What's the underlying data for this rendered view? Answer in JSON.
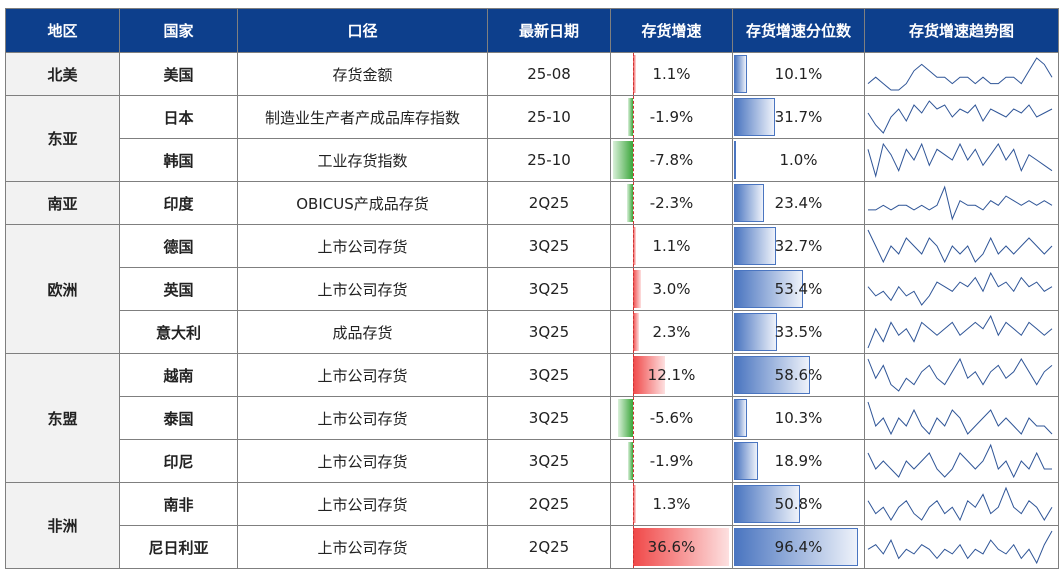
{
  "header": [
    "地区",
    "国家",
    "口径",
    "最新日期",
    "存货增速",
    "存货增速分位数",
    "存货增速趋势图"
  ],
  "regions": [
    {
      "name": "北美",
      "rows": [
        {
          "country": "美国",
          "metric": "存货金额",
          "date": "25-08",
          "growth": "1.1%",
          "percentile": "10.1%",
          "trend": [
            5,
            6,
            5,
            4,
            4,
            5,
            7,
            8,
            7,
            6,
            6,
            5,
            6,
            6,
            5,
            6,
            5,
            5,
            6,
            6,
            5,
            7,
            9,
            8,
            6
          ]
        }
      ]
    },
    {
      "name": "东亚",
      "rows": [
        {
          "country": "日本",
          "metric": "制造业生产者产成品库存指数",
          "date": "25-10",
          "growth": "-1.9%",
          "percentile": "31.7%",
          "trend": [
            6,
            3,
            1,
            5,
            7,
            4,
            8,
            6,
            9,
            7,
            8,
            5,
            7,
            6,
            8,
            4,
            7,
            6,
            5,
            7,
            6,
            8,
            5,
            6,
            7
          ]
        },
        {
          "country": "韩国",
          "metric": "工业存货指数",
          "date": "25-10",
          "growth": "-7.8%",
          "percentile": "1.0%",
          "trend": [
            7,
            2,
            8,
            6,
            3,
            7,
            5,
            8,
            4,
            7,
            6,
            5,
            8,
            5,
            7,
            4,
            6,
            8,
            5,
            7,
            3,
            6,
            5,
            4,
            3
          ]
        }
      ]
    },
    {
      "name": "南亚",
      "rows": [
        {
          "country": "印度",
          "metric": "OBICUS产成品存货",
          "date": "2Q25",
          "growth": "-2.3%",
          "percentile": "23.4%",
          "trend": [
            4,
            4,
            5,
            4,
            5,
            5,
            4,
            5,
            4,
            5,
            9,
            2,
            6,
            5,
            5,
            4,
            6,
            5,
            7,
            6,
            5,
            6,
            5,
            6,
            5
          ]
        }
      ]
    },
    {
      "name": "欧洲",
      "rows": [
        {
          "country": "德国",
          "metric": "上市公司存货",
          "date": "3Q25",
          "growth": "1.1%",
          "percentile": "32.7%",
          "trend": [
            8,
            6,
            4,
            6,
            5,
            7,
            6,
            5,
            7,
            6,
            4,
            6,
            5,
            6,
            4,
            5,
            7,
            5,
            6,
            5,
            6,
            7,
            6,
            5,
            6
          ]
        },
        {
          "country": "英国",
          "metric": "上市公司存货",
          "date": "3Q25",
          "growth": "3.0%",
          "percentile": "53.4%",
          "trend": [
            6,
            4,
            5,
            3,
            6,
            4,
            5,
            2,
            4,
            7,
            6,
            5,
            7,
            6,
            8,
            5,
            9,
            6,
            7,
            5,
            8,
            6,
            7,
            5,
            6
          ]
        },
        {
          "country": "意大利",
          "metric": "成品存货",
          "date": "3Q25",
          "growth": "2.3%",
          "percentile": "33.5%",
          "trend": [
            3,
            6,
            4,
            7,
            5,
            6,
            4,
            7,
            6,
            5,
            6,
            7,
            5,
            6,
            7,
            6,
            8,
            5,
            7,
            6,
            5,
            7,
            6,
            5,
            6
          ]
        }
      ]
    },
    {
      "name": "东盟",
      "rows": [
        {
          "country": "越南",
          "metric": "上市公司存货",
          "date": "3Q25",
          "growth": "12.1%",
          "percentile": "58.6%",
          "trend": [
            8,
            5,
            7,
            4,
            3,
            5,
            4,
            6,
            7,
            5,
            4,
            6,
            8,
            5,
            6,
            4,
            6,
            7,
            5,
            6,
            8,
            6,
            4,
            6,
            7
          ]
        },
        {
          "country": "泰国",
          "metric": "上市公司存货",
          "date": "3Q25",
          "growth": "-5.6%",
          "percentile": "10.3%",
          "trend": [
            8,
            5,
            6,
            4,
            6,
            5,
            7,
            5,
            4,
            6,
            5,
            7,
            6,
            4,
            5,
            6,
            7,
            5,
            6,
            5,
            4,
            6,
            5,
            5,
            4
          ]
        },
        {
          "country": "印尼",
          "metric": "上市公司存货",
          "date": "3Q25",
          "growth": "-1.9%",
          "percentile": "18.9%",
          "trend": [
            7,
            5,
            6,
            5,
            4,
            6,
            5,
            6,
            7,
            5,
            4,
            5,
            7,
            6,
            5,
            6,
            8,
            5,
            6,
            4,
            6,
            5,
            7,
            5,
            5
          ]
        }
      ]
    },
    {
      "name": "非洲",
      "rows": [
        {
          "country": "南非",
          "metric": "上市公司存货",
          "date": "2Q25",
          "growth": "1.3%",
          "percentile": "50.8%",
          "trend": [
            6,
            4,
            5,
            3,
            5,
            6,
            4,
            3,
            5,
            6,
            4,
            5,
            3,
            6,
            5,
            7,
            4,
            5,
            8,
            5,
            4,
            6,
            5,
            3,
            5
          ]
        },
        {
          "country": "尼日利亚",
          "metric": "上市公司存货",
          "date": "2Q25",
          "growth": "36.6%",
          "percentile": "96.4%",
          "trend": [
            5,
            6,
            4,
            7,
            3,
            5,
            4,
            6,
            5,
            3,
            5,
            4,
            6,
            3,
            5,
            4,
            7,
            5,
            4,
            6,
            3,
            5,
            2,
            6,
            9
          ]
        }
      ]
    }
  ]
}
